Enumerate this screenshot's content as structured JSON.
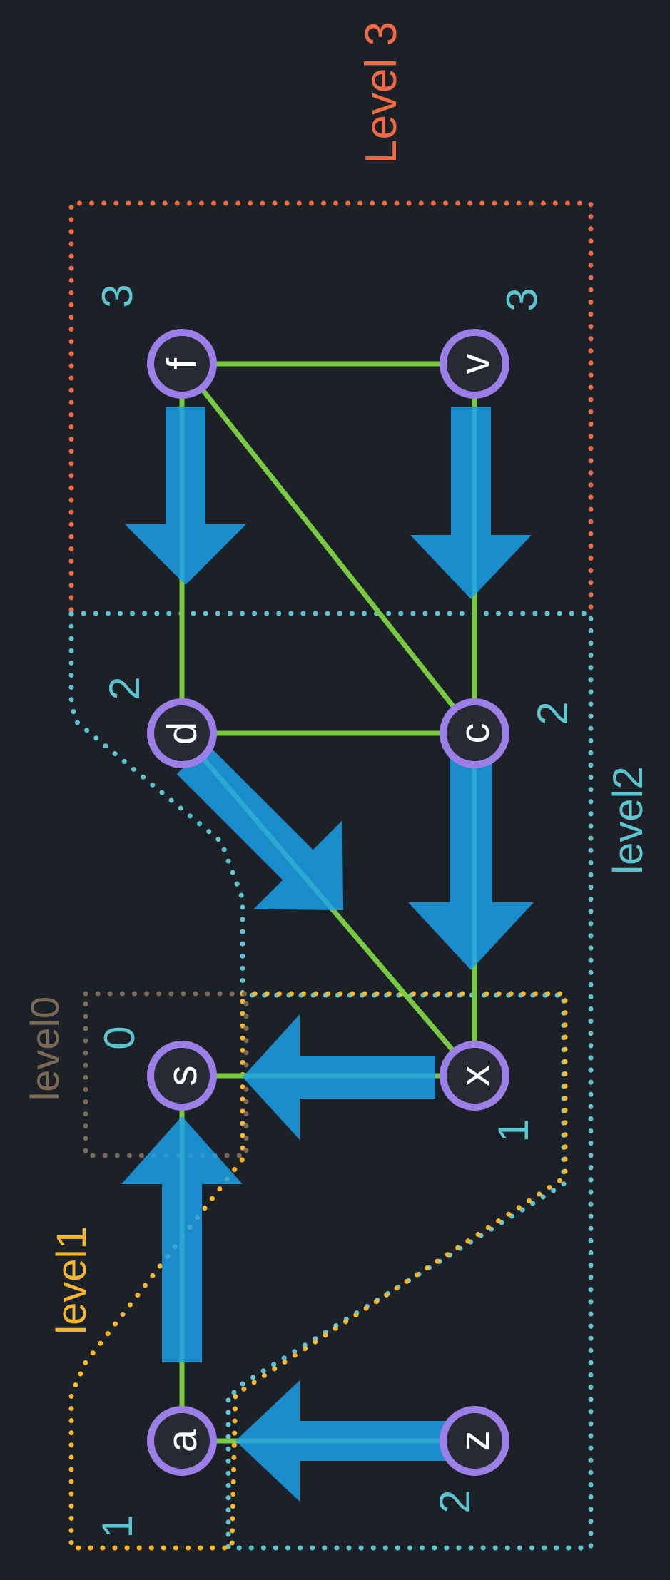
{
  "level_labels": {
    "level0": "level0",
    "level1": "level1",
    "level2": "level2",
    "level3": "Level 3"
  },
  "nodes": {
    "a": {
      "label": "a",
      "level": "1"
    },
    "z": {
      "label": "z",
      "level": "2"
    },
    "s": {
      "label": "s",
      "level": "0"
    },
    "x": {
      "label": "x",
      "level": "1"
    },
    "d": {
      "label": "d",
      "level": "2"
    },
    "c": {
      "label": "c",
      "level": "2"
    },
    "f": {
      "label": "f",
      "level": "3"
    },
    "v": {
      "label": "v",
      "level": "3"
    }
  },
  "edges": [
    [
      "a",
      "s"
    ],
    [
      "a",
      "z"
    ],
    [
      "s",
      "x"
    ],
    [
      "x",
      "d"
    ],
    [
      "x",
      "c"
    ],
    [
      "d",
      "c"
    ],
    [
      "d",
      "f"
    ],
    [
      "c",
      "f"
    ],
    [
      "c",
      "v"
    ],
    [
      "f",
      "v"
    ]
  ],
  "colors": {
    "background": "#1c2127",
    "node_ring": "#9b7fe6",
    "node_fill": "#252a33",
    "edge": "#7ac943",
    "arrow": "#1aa3f0",
    "level_number": "#5fc4cf",
    "level0_box": "#7a6a55",
    "level1_box": "#f5b731",
    "level2_box": "#5fc4cf",
    "level3_box": "#ef6a45"
  }
}
